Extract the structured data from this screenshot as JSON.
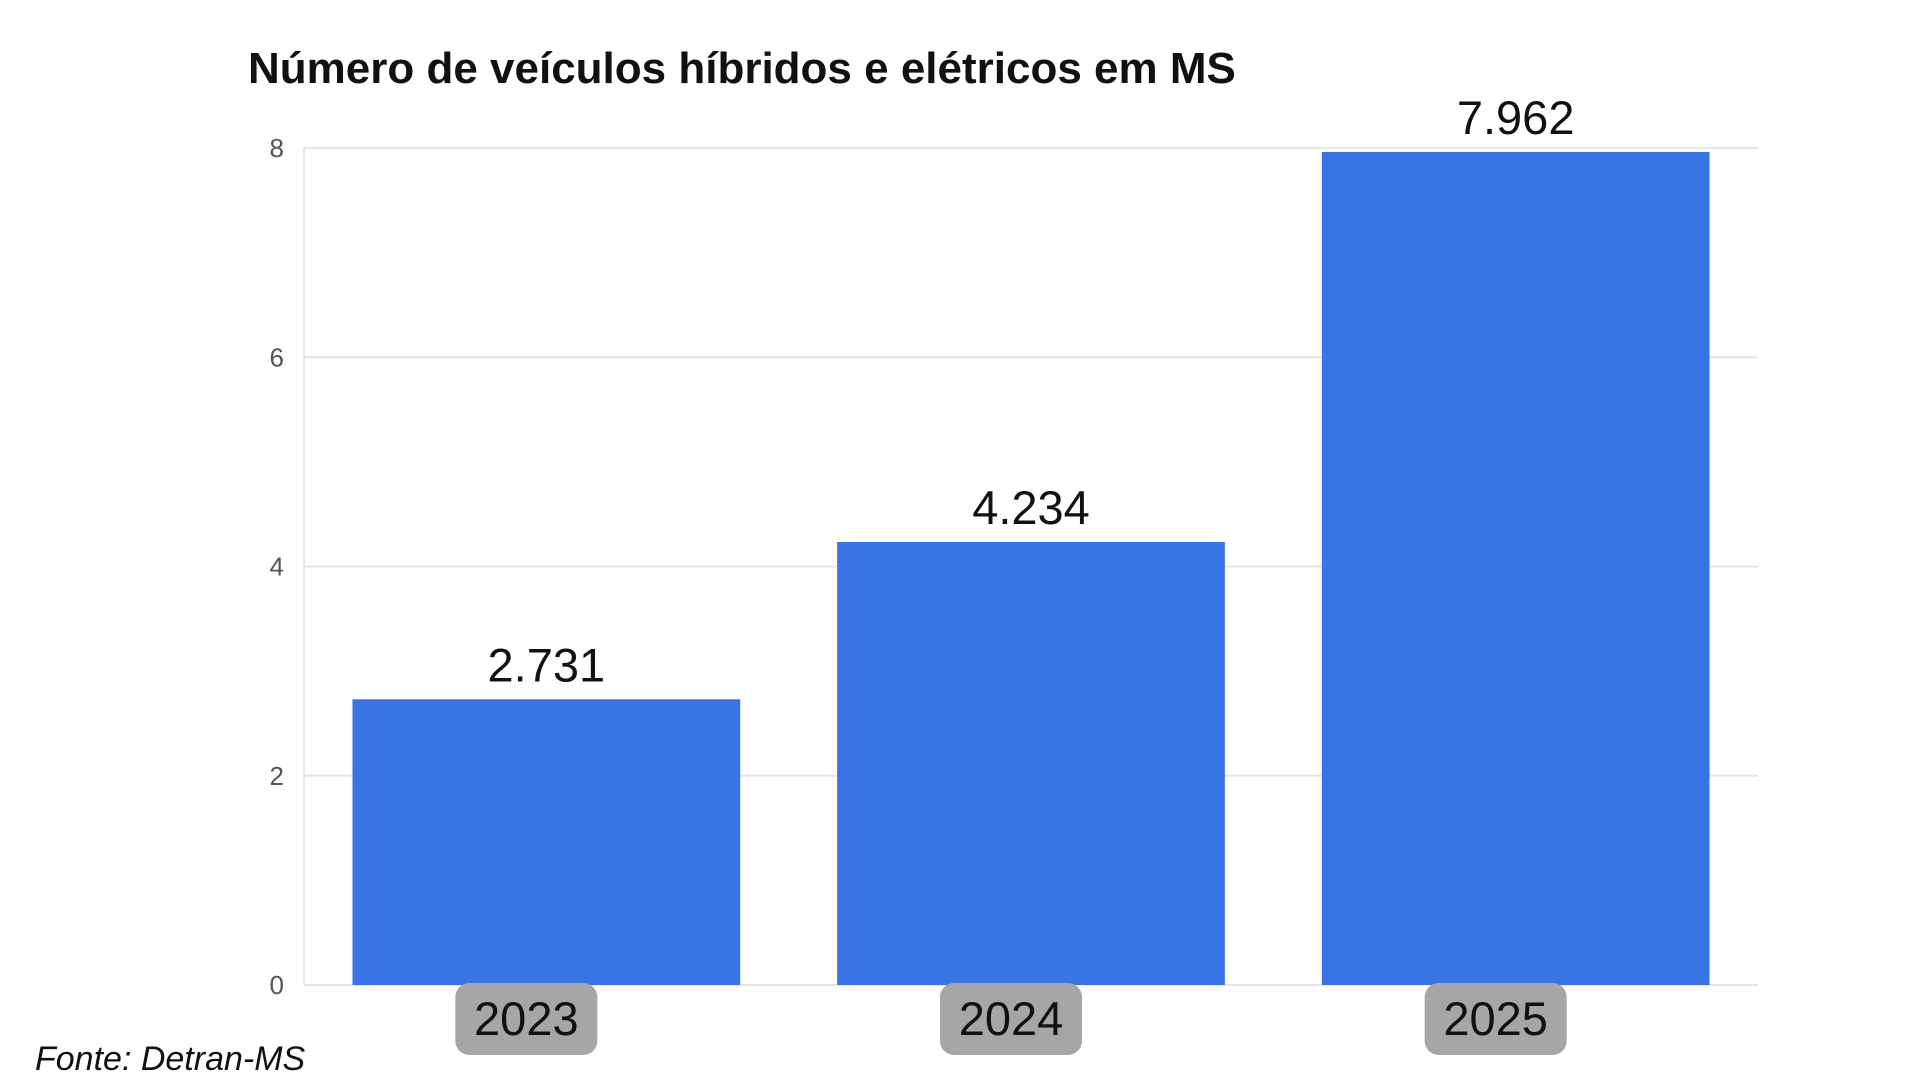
{
  "chart_data": {
    "type": "bar",
    "title": "Número de veículos híbridos e elétricos em MS",
    "categories": [
      "2023",
      "2024",
      "2025"
    ],
    "values": [
      2.731,
      4.234,
      7.962
    ],
    "value_labels": [
      "2.731",
      "4.234",
      "7.962"
    ],
    "ylim": [
      0,
      8
    ],
    "y_ticks": [
      0,
      2,
      4,
      6,
      8
    ],
    "xlabel": "",
    "ylabel": "",
    "grid": true,
    "legend": "none",
    "colors": {
      "bar": "#3874e3",
      "x_tick_label_background": "#a6a6a6",
      "grid": "#e6e6e6"
    }
  },
  "source": "Fonte: Detran-MS"
}
